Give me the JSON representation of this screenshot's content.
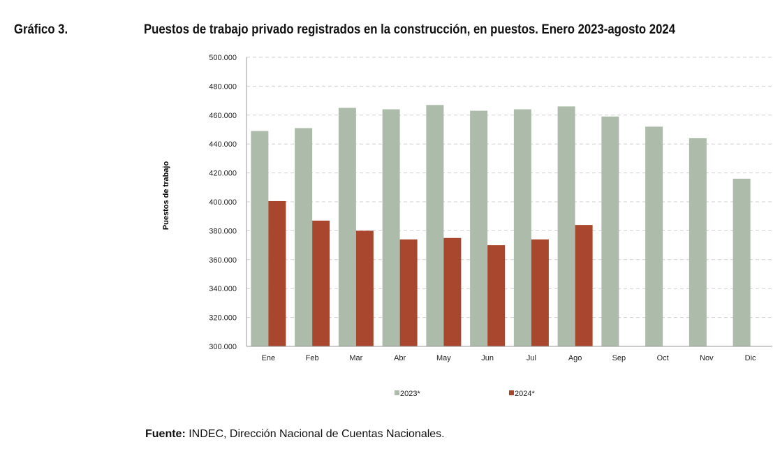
{
  "header": {
    "label": "Gráfico 3.",
    "title": "Puestos de trabajo privado registrados en la construcción, en puestos. Enero 2023-agosto 2024"
  },
  "source": {
    "prefix": "Fuente:",
    "text": " INDEC, Dirección Nacional de Cuentas Nacionales."
  },
  "chart_data": {
    "type": "bar",
    "title": "Puestos de trabajo privado registrados en la construcción, en puestos. Enero 2023-agosto 2024",
    "ylabel": "Puestos de trabajo",
    "xlabel": "",
    "ylim": [
      300000,
      500000
    ],
    "yticks": [
      "300.000",
      "320.000",
      "340.000",
      "360.000",
      "380.000",
      "400.000",
      "420.000",
      "440.000",
      "460.000",
      "480.000",
      "500.000"
    ],
    "grid": true,
    "legend_position": "bottom",
    "categories": [
      "Ene",
      "Feb",
      "Mar",
      "Abr",
      "May",
      "Jun",
      "Jul",
      "Ago",
      "Sep",
      "Oct",
      "Nov",
      "Dic"
    ],
    "series": [
      {
        "name": "2023*",
        "color": "#adbcaa",
        "values": [
          449000,
          451000,
          465000,
          464000,
          467000,
          463000,
          464000,
          466000,
          459000,
          452000,
          444000,
          416000
        ]
      },
      {
        "name": "2024*",
        "color": "#a9472e",
        "values": [
          400500,
          387000,
          380000,
          374000,
          375000,
          370000,
          374000,
          384000,
          null,
          null,
          null,
          null
        ]
      }
    ]
  }
}
